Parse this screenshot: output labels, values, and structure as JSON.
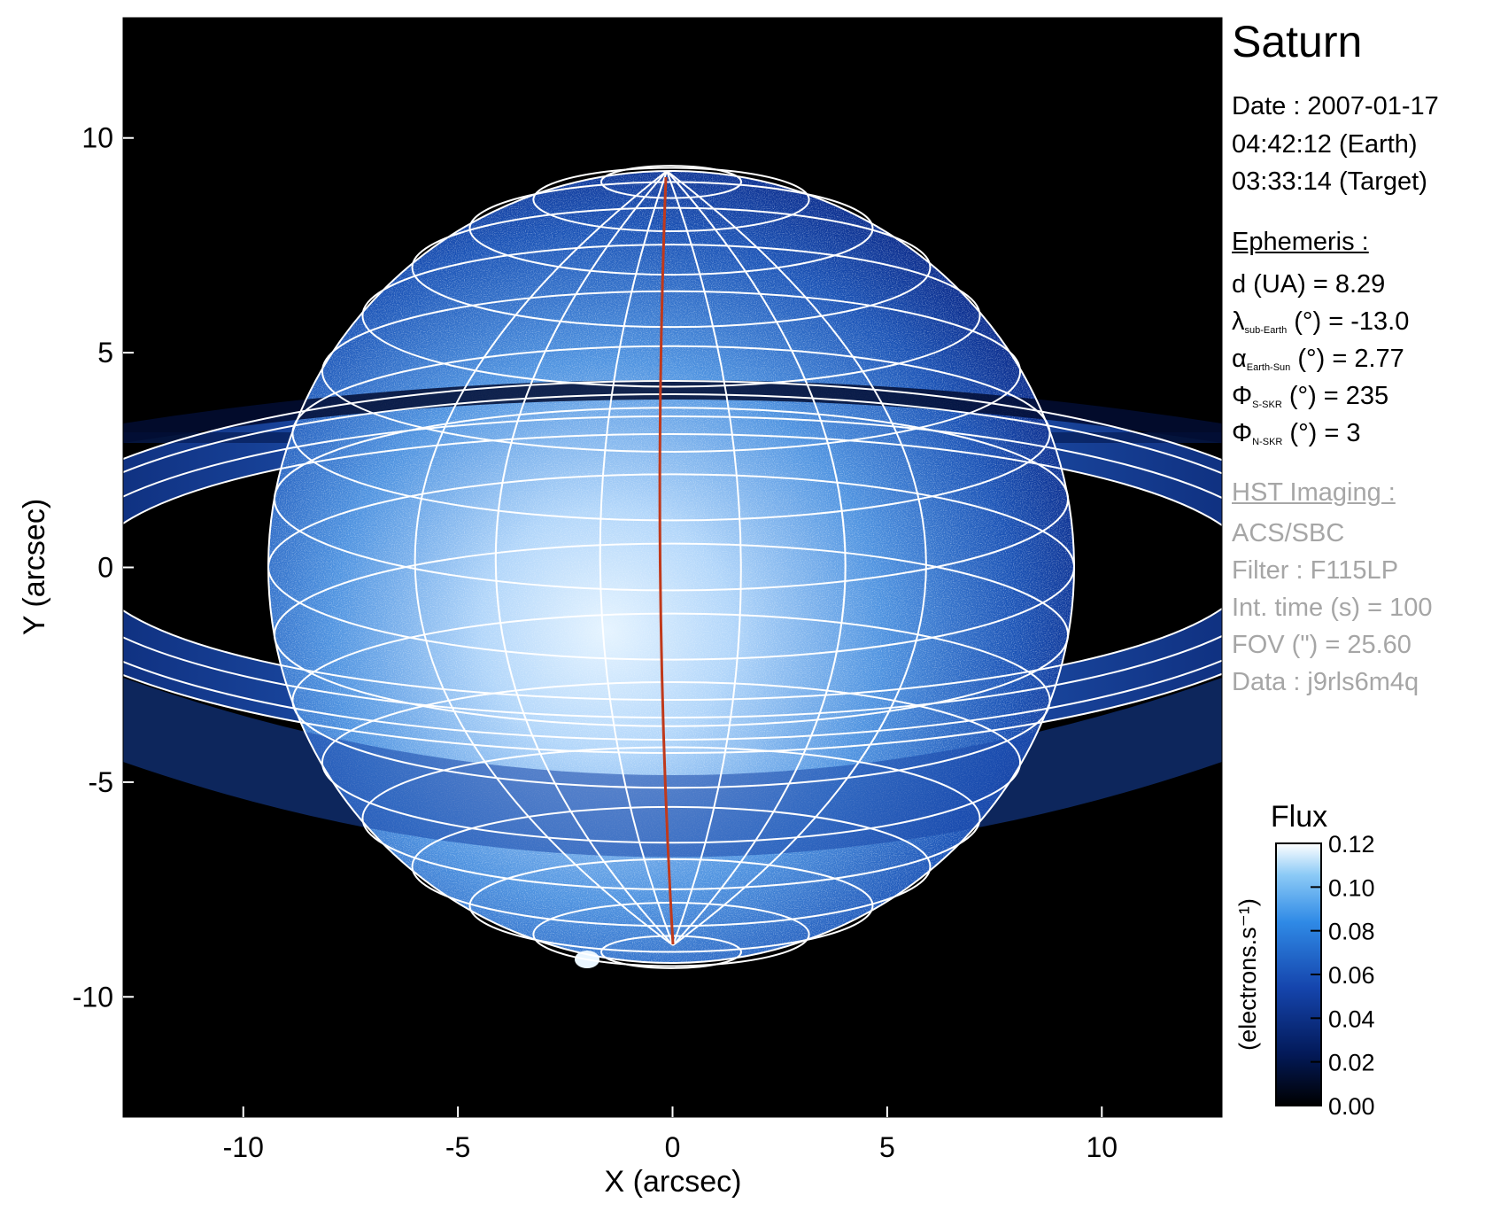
{
  "title": "Saturn",
  "observation": {
    "date_line": "Date : 2007-01-17",
    "earth_time": "04:42:12 (Earth)",
    "target_time": "03:33:14 (Target)"
  },
  "ephemeris": {
    "heading": "Ephemeris :",
    "rows": [
      {
        "symbol": "d (UA)",
        "sub": "",
        "unit": "",
        "value": "= 8.29"
      },
      {
        "symbol": "λ",
        "sub": "sub-Earth",
        "unit": "(°)",
        "value": "= -13.0"
      },
      {
        "symbol": "α",
        "sub": "Earth-Sun",
        "unit": "(°)",
        "value": "= 2.77"
      },
      {
        "symbol": "Φ",
        "sub": "S-SKR",
        "unit": "(°)",
        "value": "= 235"
      },
      {
        "symbol": "Φ",
        "sub": "N-SKR",
        "unit": "(°)",
        "value": "= 3"
      }
    ]
  },
  "imaging": {
    "heading": "HST Imaging :",
    "lines": [
      "ACS/SBC",
      "Filter : F115LP",
      "Int. time (s) = 100",
      "FOV (\") = 25.60",
      "Data : j9rls6m4q"
    ]
  },
  "axes": {
    "xlabel": "X (arcsec)",
    "ylabel": "Y (arcsec)",
    "x_ticks": [
      "-10",
      "-5",
      "0",
      "5",
      "10"
    ],
    "y_ticks": [
      "10",
      "5",
      "0",
      "-5",
      "-10"
    ],
    "range": [
      -12.8,
      12.8
    ]
  },
  "colorbar": {
    "title": "Flux",
    "label": "(electrons.s⁻¹)",
    "ticks": [
      "0.12",
      "0.10",
      "0.08",
      "0.06",
      "0.04",
      "0.02",
      "0.00"
    ]
  },
  "colors": {
    "background": "#000000",
    "planet_low": "#0a2a8a",
    "planet_high": "#e6f4ff",
    "grid": "#ffffff",
    "meridian": "#c0391b",
    "secondary_text": "#a6a6a6"
  }
}
